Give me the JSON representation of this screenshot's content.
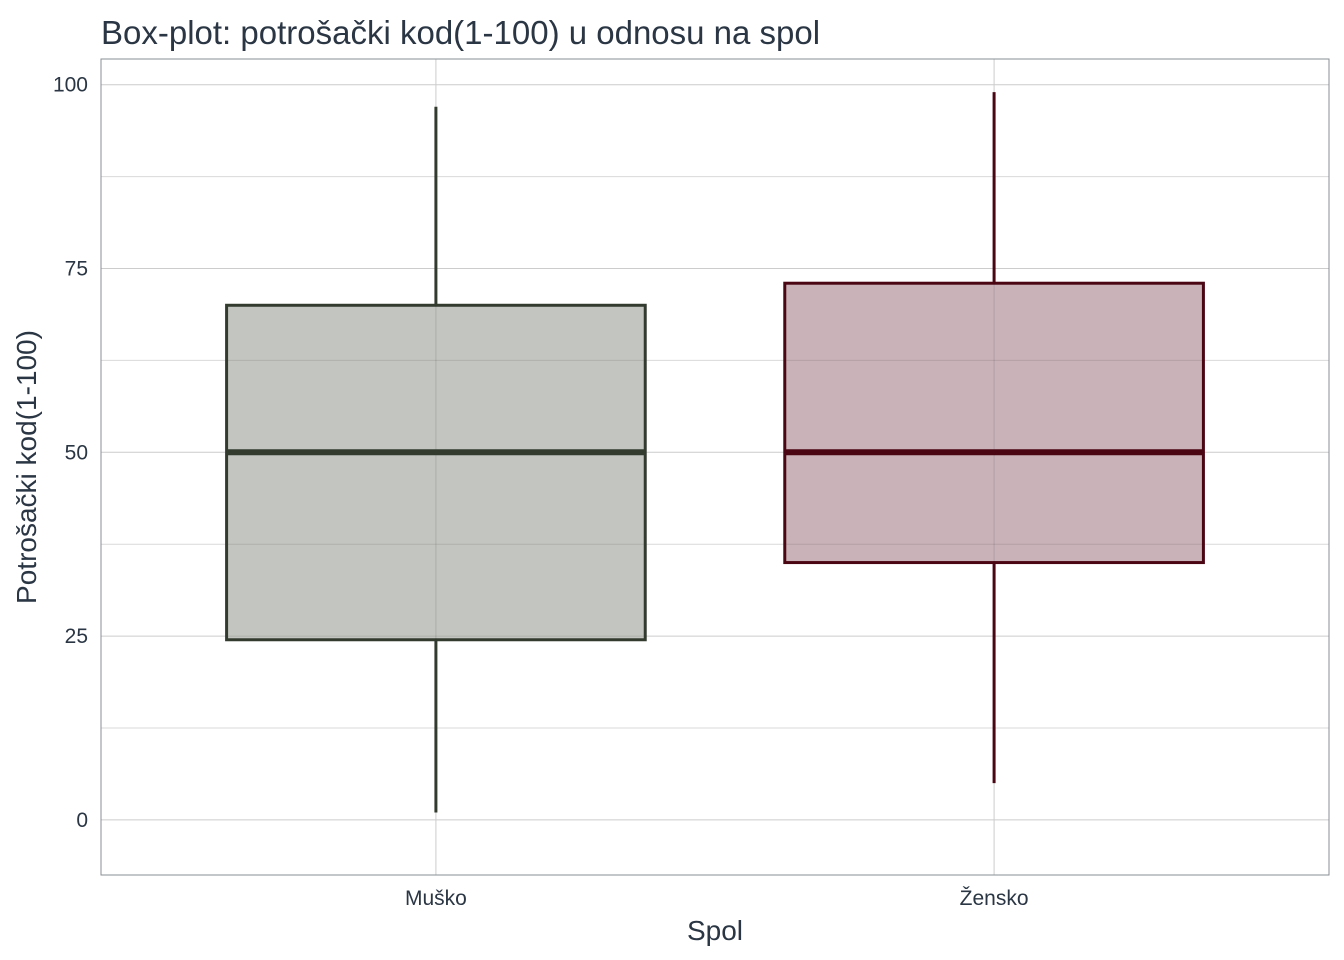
{
  "chart_data": {
    "type": "boxplot",
    "title": "Box-plot: potrošački kod(1-100) u odnosu na spol",
    "xlabel": "Spol",
    "ylabel": "Potrošački kod(1-100)",
    "ylim": [
      -7.5,
      103.5
    ],
    "y_ticks": [
      "0",
      "25",
      "50",
      "75",
      "100"
    ],
    "grid": true,
    "categories": [
      "Muško",
      "Žensko"
    ],
    "boxes": [
      {
        "category": "Muško",
        "min": 1,
        "q1": 24.5,
        "median": 50,
        "q3": 70,
        "max": 97,
        "color": "#333b2e",
        "fill": "#c3c5c0"
      },
      {
        "category": "Žensko",
        "min": 5,
        "q1": 35,
        "median": 50,
        "q3": 73,
        "max": 99,
        "color": "#4b0614",
        "fill": "#c9b3b9"
      }
    ]
  }
}
